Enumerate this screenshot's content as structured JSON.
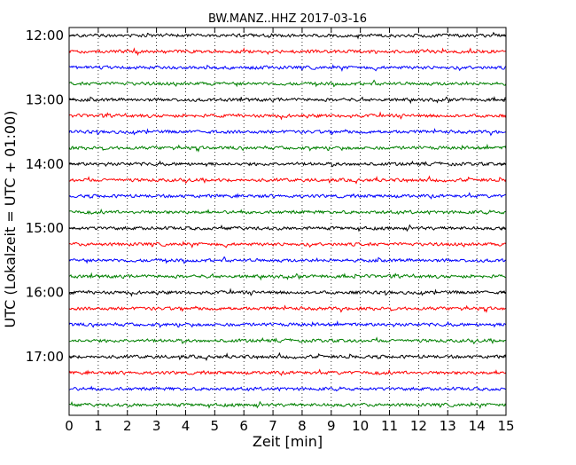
{
  "chart_data": {
    "type": "line",
    "title": "BW.MANZ..HHZ 2017-03-16",
    "xlabel": "Zeit  [min]",
    "ylabel": "UTC (Lokalzeit = UTC + 01:00)",
    "xlim": [
      0,
      15
    ],
    "x_ticks": [
      "0",
      "1",
      "2",
      "3",
      "4",
      "5",
      "6",
      "7",
      "8",
      "9",
      "10",
      "11",
      "12",
      "13",
      "14",
      "15"
    ],
    "y_tick_labels": [
      "12:00",
      "13:00",
      "14:00",
      "15:00",
      "16:00",
      "17:00"
    ],
    "grid": "vertical-dotted",
    "trace_colors": [
      "#000000",
      "#ff0000",
      "#0000ff",
      "#008000"
    ],
    "trace_start_times": [
      "12:00",
      "12:15",
      "12:30",
      "12:45",
      "13:00",
      "13:15",
      "13:30",
      "13:45",
      "14:00",
      "14:15",
      "14:30",
      "14:45",
      "15:00",
      "15:15",
      "15:30",
      "15:45",
      "16:00",
      "16:15",
      "16:30",
      "16:45",
      "17:00",
      "17:15",
      "17:30",
      "17:45"
    ]
  }
}
